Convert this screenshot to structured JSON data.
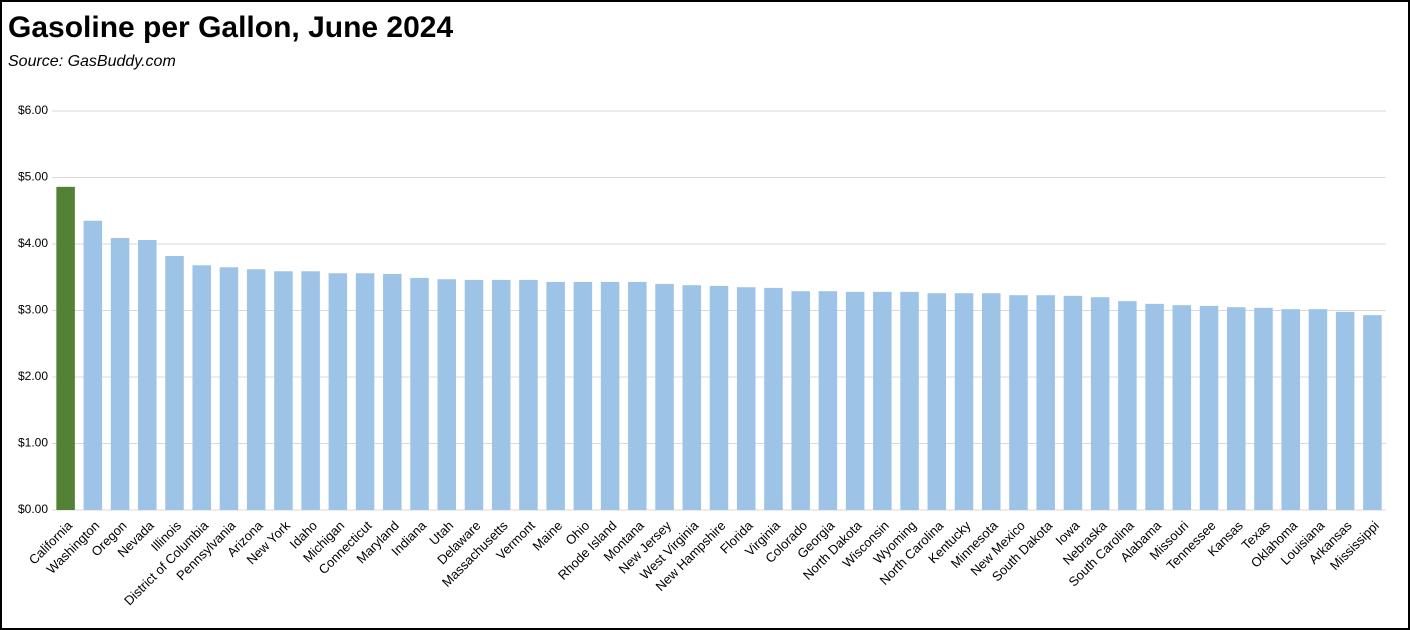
{
  "chart_data": {
    "type": "bar",
    "title": "Gasoline per Gallon, June 2024",
    "subtitle": "Source:  GasBuddy.com",
    "categories": [
      "California",
      "Washington",
      "Oregon",
      "Nevada",
      "Illinois",
      "District of Columbia",
      "Pennsylvania",
      "Arizona",
      "New York",
      "Idaho",
      "Michigan",
      "Connecticut",
      "Maryland",
      "Indiana",
      "Utah",
      "Delaware",
      "Massachusetts",
      "Vermont",
      "Maine",
      "Ohio",
      "Rhode Island",
      "Montana",
      "New Jersey",
      "West Virginia",
      "New Hampshire",
      "Florida",
      "Virginia",
      "Colorado",
      "Georgia",
      "North Dakota",
      "Wisconsin",
      "Wyoming",
      "North Carolina",
      "Kentucky",
      "Minnesota",
      "New Mexico",
      "South Dakota",
      "Iowa",
      "Nebraska",
      "South Carolina",
      "Alabama",
      "Missouri",
      "Tennessee",
      "Kansas",
      "Texas",
      "Oklahoma",
      "Louisiana",
      "Arkansas",
      "Mississippi"
    ],
    "values": [
      4.86,
      4.35,
      4.09,
      4.06,
      3.82,
      3.68,
      3.65,
      3.62,
      3.59,
      3.59,
      3.56,
      3.56,
      3.55,
      3.49,
      3.47,
      3.46,
      3.46,
      3.46,
      3.43,
      3.43,
      3.43,
      3.43,
      3.4,
      3.38,
      3.37,
      3.35,
      3.34,
      3.29,
      3.29,
      3.28,
      3.28,
      3.28,
      3.26,
      3.26,
      3.26,
      3.23,
      3.23,
      3.22,
      3.2,
      3.14,
      3.1,
      3.08,
      3.07,
      3.05,
      3.04,
      3.02,
      3.02,
      2.98,
      2.93
    ],
    "colors": [
      "#548235",
      "#9dc3e6",
      "#9dc3e6",
      "#9dc3e6",
      "#9dc3e6",
      "#9dc3e6",
      "#9dc3e6",
      "#9dc3e6",
      "#9dc3e6",
      "#9dc3e6",
      "#9dc3e6",
      "#9dc3e6",
      "#9dc3e6",
      "#9dc3e6",
      "#9dc3e6",
      "#9dc3e6",
      "#9dc3e6",
      "#9dc3e6",
      "#9dc3e6",
      "#9dc3e6",
      "#9dc3e6",
      "#9dc3e6",
      "#9dc3e6",
      "#9dc3e6",
      "#9dc3e6",
      "#9dc3e6",
      "#9dc3e6",
      "#9dc3e6",
      "#9dc3e6",
      "#9dc3e6",
      "#9dc3e6",
      "#9dc3e6",
      "#9dc3e6",
      "#9dc3e6",
      "#9dc3e6",
      "#9dc3e6",
      "#9dc3e6",
      "#9dc3e6",
      "#9dc3e6",
      "#9dc3e6",
      "#9dc3e6",
      "#9dc3e6",
      "#9dc3e6",
      "#9dc3e6",
      "#9dc3e6",
      "#9dc3e6",
      "#9dc3e6",
      "#9dc3e6",
      "#9dc3e6"
    ],
    "ylim": [
      0,
      6
    ],
    "yticks": [
      {
        "value": 0,
        "label": "$0.00"
      },
      {
        "value": 1,
        "label": "$1.00"
      },
      {
        "value": 2,
        "label": "$2.00"
      },
      {
        "value": 3,
        "label": "$3.00"
      },
      {
        "value": 4,
        "label": "$4.00"
      },
      {
        "value": 5,
        "label": "$5.00"
      },
      {
        "value": 6,
        "label": "$6.00"
      }
    ],
    "grid": true
  }
}
